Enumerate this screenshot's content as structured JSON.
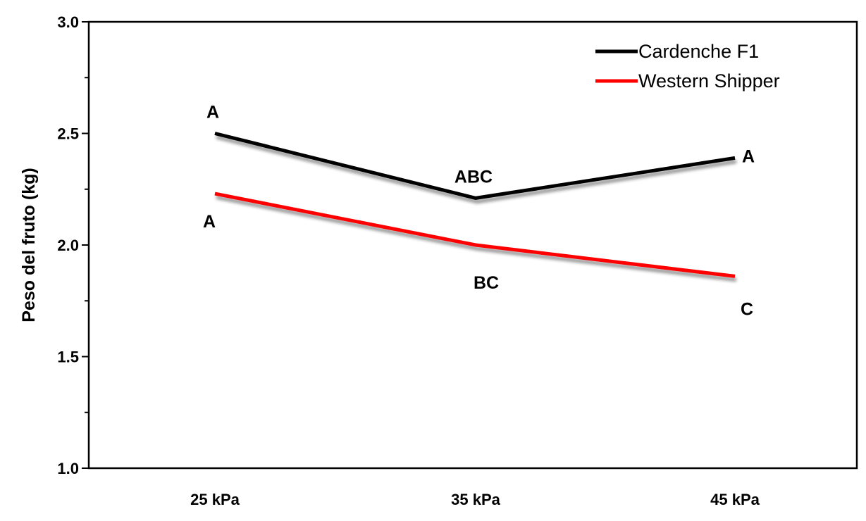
{
  "chart_data": {
    "type": "line",
    "categories": [
      "25 kPa",
      "35 kPa",
      "45 kPa"
    ],
    "ylabel": "Peso del fruto (kg)",
    "xlabel": "",
    "ylim": [
      1.0,
      3.0
    ],
    "yticks": [
      "1.0",
      "1.5",
      "2.0",
      "2.5",
      "3.0"
    ],
    "ytick_values": [
      1.0,
      1.5,
      2.0,
      2.5,
      3.0
    ],
    "grid": false,
    "legend_position": "top-right",
    "series": [
      {
        "name": "Cardenche F1",
        "color": "#000000",
        "values": [
          2.5,
          2.21,
          2.39
        ],
        "labels": [
          "A",
          "ABC",
          "A"
        ],
        "label_sides": [
          "above",
          "above",
          "right"
        ]
      },
      {
        "name": "Western Shipper",
        "color": "#ff0000",
        "values": [
          2.23,
          2.0,
          1.86
        ],
        "labels": [
          "A",
          "BC",
          "C"
        ],
        "label_sides": [
          "below",
          "below",
          "below"
        ]
      }
    ]
  }
}
